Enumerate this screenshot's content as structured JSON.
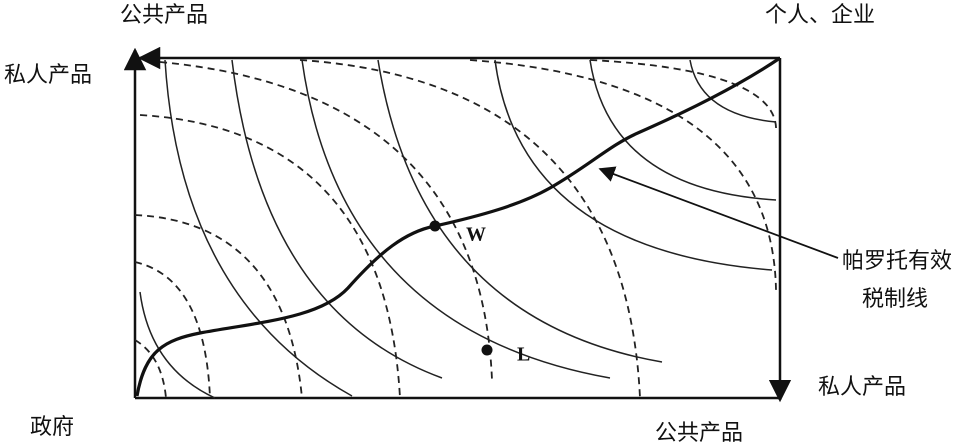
{
  "labels": {
    "top_left": "公共产品",
    "top_right": "个人、企业",
    "left": "私人产品",
    "bottom_left": "政府",
    "bottom_right": "公共产品",
    "right": "私人产品",
    "annotation_line1": "帕罗托有效",
    "annotation_line2": "税制线",
    "point_w": "W",
    "point_l": "L"
  }
}
